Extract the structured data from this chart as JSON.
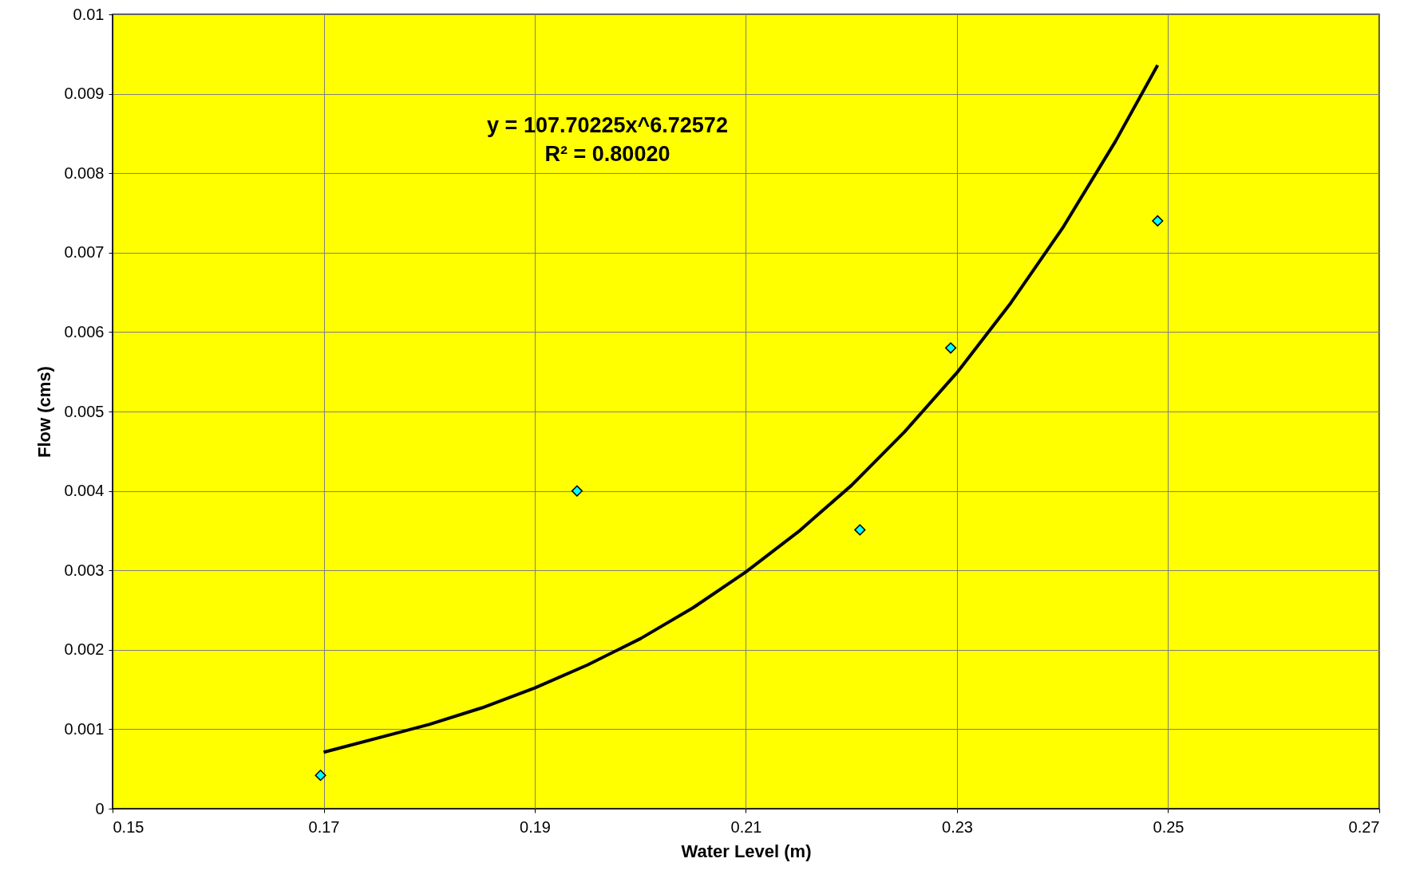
{
  "chart_data": {
    "type": "scatter",
    "xlabel": "Water Level (m)",
    "ylabel": "Flow (cms)",
    "xlim": [
      0.15,
      0.27
    ],
    "xticks": [
      0.15,
      0.17,
      0.19,
      0.21,
      0.23,
      0.25,
      0.27
    ],
    "ylim": [
      0,
      0.01
    ],
    "yticks": [
      0,
      0.001,
      0.002,
      0.003,
      0.004,
      0.005,
      0.006,
      0.007,
      0.008,
      0.009,
      0.01
    ],
    "grid": true,
    "series": [
      {
        "marker": "diamond",
        "color": "#00ffff",
        "x": [
          0.1697,
          0.194,
          0.2208,
          0.2294,
          0.249
        ],
        "values": [
          0.00042,
          0.004,
          0.00351,
          0.0058,
          0.0074
        ]
      },
      {
        "type": "line",
        "line_style": "solid",
        "color": "#000000",
        "x": [
          0.17,
          0.18,
          0.185,
          0.19,
          0.195,
          0.2,
          0.205,
          0.21,
          0.215,
          0.22,
          0.225,
          0.23,
          0.235,
          0.24,
          0.245,
          0.249
        ],
        "values": [
          0.00071,
          0.00106,
          0.00127,
          0.00152,
          0.00181,
          0.00214,
          0.00253,
          0.00298,
          0.00349,
          0.00407,
          0.00474,
          0.00549,
          0.00635,
          0.00731,
          0.0084,
          0.00936
        ]
      }
    ],
    "annotations": [
      "y = 107.70225x^6.72572",
      "R² = 0.80020"
    ]
  }
}
